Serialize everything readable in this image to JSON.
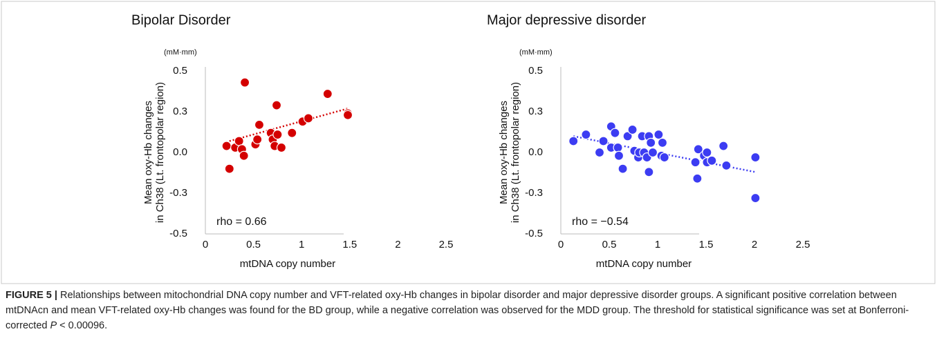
{
  "chart_data": [
    {
      "type": "scatter",
      "title": "Bipolar Disorder",
      "unit_label": "(mM·mm)",
      "ylabel": [
        "Mean oxy-Hb changes",
        "in Ch38 (Lt. frontopolar region)"
      ],
      "xlabel": "mtDNA copy number",
      "annotation": "rho = 0.66",
      "color": "#d40000",
      "x": [
        0.22,
        0.25,
        0.31,
        0.35,
        0.38,
        0.4,
        0.41,
        0.52,
        0.54,
        0.56,
        0.68,
        0.7,
        0.72,
        0.74,
        0.75,
        0.79,
        0.9,
        1.01,
        1.07,
        1.27,
        1.48,
        1.48
      ],
      "y": [
        0.04,
        -0.1,
        0.03,
        0.07,
        0.02,
        -0.02,
        0.43,
        0.05,
        0.08,
        0.17,
        0.12,
        0.08,
        0.04,
        0.29,
        0.11,
        0.03,
        0.12,
        0.19,
        0.21,
        0.36,
        0.24,
        0.23
      ],
      "trendline": {
        "x": [
          0.25,
          1.48
        ],
        "y": [
          0.07,
          0.27
        ]
      },
      "xlim": [
        0,
        2.5
      ],
      "xticks": [
        0,
        0.5,
        1,
        1.5,
        2,
        2.5
      ],
      "ylim": [
        -0.5,
        0.5
      ],
      "yticks": [
        0.5,
        {
          "value": 0.25,
          "label": "0.3"
        },
        {
          "value": 0,
          "label": "0.0"
        },
        {
          "value": -0.25,
          "label": "-0.3"
        },
        -0.5
      ]
    },
    {
      "type": "scatter",
      "title": "Major depressive disorder",
      "unit_label": "(mM·mm)",
      "ylabel": [
        "Mean oxy-Hb changes",
        "in Ch38 (Lt. frontopolar region)"
      ],
      "xlabel": "mtDNA copy number",
      "annotation": "rho = −0.54",
      "color": "#3c3cf2",
      "x": [
        0.13,
        0.26,
        0.4,
        0.44,
        0.52,
        0.52,
        0.56,
        0.59,
        0.6,
        0.64,
        0.69,
        0.74,
        0.76,
        0.8,
        0.81,
        0.84,
        0.86,
        0.89,
        0.91,
        0.91,
        0.93,
        0.95,
        1.01,
        1.04,
        1.05,
        1.07,
        1.39,
        1.41,
        1.42,
        1.48,
        1.51,
        1.51,
        1.56,
        1.68,
        1.71,
        2.01,
        2.01
      ],
      "y": [
        0.07,
        0.11,
        0.0,
        0.07,
        0.16,
        0.03,
        0.12,
        0.03,
        -0.02,
        -0.1,
        0.1,
        0.14,
        0.01,
        -0.03,
        0.0,
        0.1,
        0.0,
        -0.03,
        0.1,
        -0.12,
        0.06,
        0.0,
        0.11,
        -0.02,
        0.06,
        -0.03,
        -0.06,
        -0.16,
        0.02,
        -0.02,
        0.0,
        -0.06,
        -0.05,
        0.04,
        -0.08,
        -0.03,
        -0.28
      ],
      "trendline": {
        "x": [
          0.13,
          2.01
        ],
        "y": [
          0.1,
          -0.12
        ]
      },
      "xlim": [
        0,
        2.5
      ],
      "xticks": [
        0,
        0.5,
        1,
        1.5,
        2,
        2.5
      ],
      "ylim": [
        -0.5,
        0.5
      ],
      "yticks": [
        0.5,
        {
          "value": 0.25,
          "label": "0.3"
        },
        {
          "value": 0,
          "label": "0.0"
        },
        {
          "value": -0.25,
          "label": "-0.3"
        },
        -0.5
      ]
    }
  ],
  "caption": {
    "label": "FIGURE 5 |",
    "text": " Relationships between mitochondrial DNA copy number and VFT-related oxy-Hb changes in bipolar disorder and major depressive disorder groups. A significant positive correlation between mtDNAcn and mean VFT-related oxy-Hb changes was found for the BD group, while a negative correlation was observed for the MDD group. The threshold for statistical significance was set at Bonferroni-corrected ",
    "italic": "P",
    "text_after": " < 0.00096."
  }
}
